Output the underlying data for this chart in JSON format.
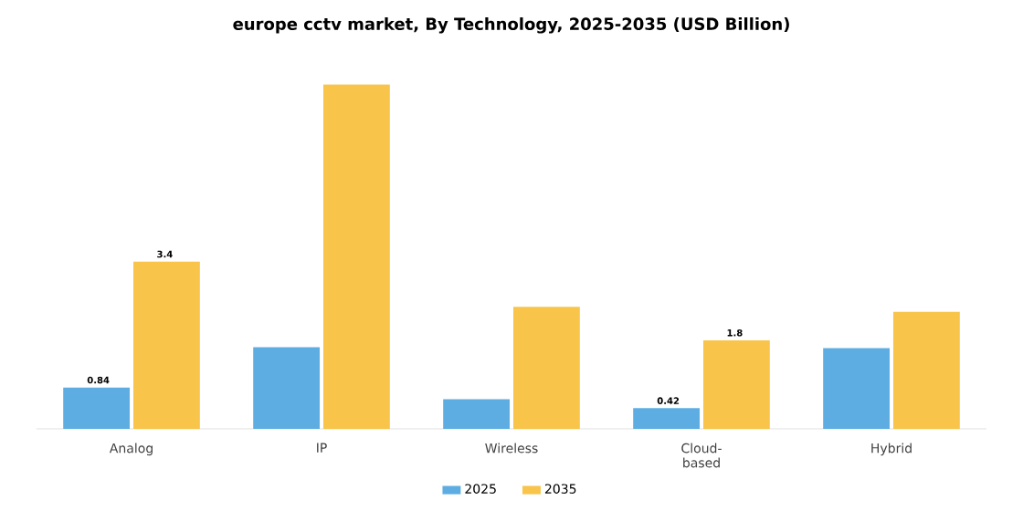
{
  "chart_data": {
    "type": "bar",
    "title": "europe cctv market, By Technology, 2025-2035 (USD Billion)",
    "categories": [
      "Analog",
      "IP",
      "Wireless",
      "Cloud-based",
      "Hybrid"
    ],
    "series": [
      {
        "name": "2025",
        "color": "#5dade2",
        "values": [
          0.84,
          1.66,
          0.6,
          0.42,
          1.64
        ],
        "value_labels": [
          "0.84",
          null,
          null,
          "0.42",
          null
        ]
      },
      {
        "name": "2035",
        "color": "#f8c449",
        "values": [
          3.4,
          7.0,
          2.48,
          1.8,
          2.38
        ],
        "value_labels": [
          "3.4",
          null,
          null,
          "1.8",
          null
        ]
      }
    ],
    "tick_labels": "x",
    "legend": "bottom"
  }
}
